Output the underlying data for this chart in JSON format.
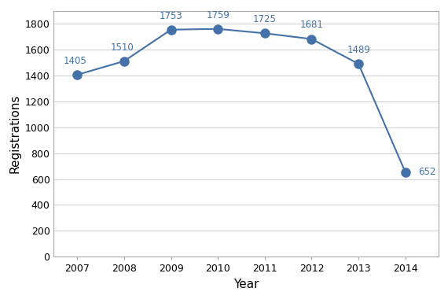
{
  "years": [
    2007,
    2008,
    2009,
    2010,
    2011,
    2012,
    2013,
    2014
  ],
  "values": [
    1405,
    1510,
    1753,
    1759,
    1725,
    1681,
    1489,
    652
  ],
  "line_color": "#4472A8",
  "marker_color": "#4472A8",
  "xlabel": "Year",
  "ylabel": "Registrations",
  "ylim": [
    0,
    1900
  ],
  "yticks": [
    0,
    200,
    400,
    600,
    800,
    1000,
    1200,
    1400,
    1600,
    1800
  ],
  "grid_color": "#d0d0d0",
  "background_color": "#ffffff",
  "marker_size": 8,
  "line_width": 1.5,
  "label_fontsize": 8.5,
  "axis_label_fontsize": 11,
  "tick_fontsize": 9
}
